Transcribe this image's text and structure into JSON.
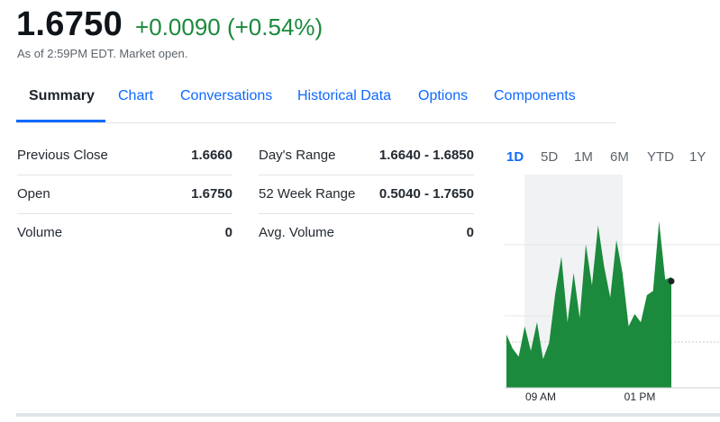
{
  "quote": {
    "price": "1.6750",
    "change": "+0.0090 (+0.54%)",
    "as_of": "As of 2:59PM EDT. Market open."
  },
  "tabs": [
    "Summary",
    "Chart",
    "Conversations",
    "Historical Data",
    "Options",
    "Components"
  ],
  "stats": {
    "left": [
      {
        "label": "Previous Close",
        "value": "1.6660"
      },
      {
        "label": "Open",
        "value": "1.6750"
      },
      {
        "label": "Volume",
        "value": "0"
      }
    ],
    "right": [
      {
        "label": "Day's Range",
        "value": "1.6640 - 1.6850"
      },
      {
        "label": "52 Week Range",
        "value": "0.5040 - 1.7650"
      },
      {
        "label": "Avg. Volume",
        "value": "0"
      }
    ]
  },
  "chart_ranges": [
    "1D",
    "5D",
    "1M",
    "6M",
    "YTD",
    "1Y"
  ],
  "colors": {
    "accent": "#0f69ff",
    "positive": "#1a8a3c",
    "chart_fill": "#1b8a3c",
    "premarket_shade": "#f1f2f3"
  },
  "chart_data": {
    "type": "area",
    "x_tick_labels": [
      "09 AM",
      "01 PM"
    ],
    "values": [
      1.6685,
      1.6668,
      1.6658,
      1.6695,
      1.6665,
      1.67,
      1.6655,
      1.6675,
      1.6735,
      1.678,
      1.67,
      1.676,
      1.6705,
      1.6795,
      1.6745,
      1.6818,
      1.6768,
      1.673,
      1.68,
      1.676,
      1.6695,
      1.671,
      1.67,
      1.6733,
      1.6738,
      1.6823,
      1.6752,
      1.6755
    ],
    "last_value": 1.675,
    "ylim": [
      1.662,
      1.688
    ]
  }
}
